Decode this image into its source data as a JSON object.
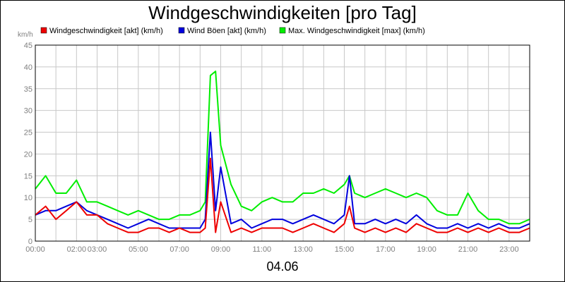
{
  "chart_data": {
    "type": "line",
    "title": "Windgeschwindigkeiten [pro Tag]",
    "unit_label": "km/h",
    "date_label": "04.06",
    "ylim": [
      0,
      45
    ],
    "y_ticks": [
      "0",
      "5",
      "10",
      "15",
      "20",
      "25",
      "30",
      "35",
      "40",
      "45"
    ],
    "xlim": [
      "00:00",
      "24:00"
    ],
    "x_ticks": [
      "00:00",
      "02:00",
      "03:00",
      "05:00",
      "07:00",
      "09:00",
      "11:00",
      "13:00",
      "15:00",
      "17:00",
      "19:00",
      "21:00",
      "23:00"
    ],
    "grid": true,
    "legend_position": "top-left",
    "series": [
      {
        "name": "Windgeschwindigkeit [akt] (km/h)",
        "color": "#ee0000",
        "x": [
          "00:00",
          "00:30",
          "01:00",
          "01:30",
          "02:00",
          "02:30",
          "03:00",
          "03:30",
          "04:00",
          "04:30",
          "05:00",
          "05:30",
          "06:00",
          "06:30",
          "07:00",
          "07:30",
          "08:00",
          "08:15",
          "08:30",
          "08:45",
          "09:00",
          "09:30",
          "10:00",
          "10:30",
          "11:00",
          "11:30",
          "12:00",
          "12:30",
          "13:00",
          "13:30",
          "14:00",
          "14:30",
          "15:00",
          "15:15",
          "15:30",
          "16:00",
          "16:30",
          "17:00",
          "17:30",
          "18:00",
          "18:30",
          "19:00",
          "19:30",
          "20:00",
          "20:30",
          "21:00",
          "21:30",
          "22:00",
          "22:30",
          "23:00",
          "23:30",
          "24:00"
        ],
        "values": [
          6,
          8,
          5,
          7,
          9,
          6,
          6,
          4,
          3,
          2,
          2,
          3,
          3,
          2,
          3,
          2,
          2,
          3,
          19,
          2,
          9,
          2,
          3,
          2,
          3,
          3,
          3,
          2,
          3,
          4,
          3,
          2,
          4,
          8,
          3,
          2,
          3,
          2,
          3,
          2,
          4,
          3,
          2,
          2,
          3,
          2,
          3,
          2,
          3,
          2,
          2,
          3
        ]
      },
      {
        "name": "Wind Böen [akt] (km/h)",
        "color": "#0000dd",
        "x": [
          "00:00",
          "00:30",
          "01:00",
          "01:30",
          "02:00",
          "02:30",
          "03:00",
          "03:30",
          "04:00",
          "04:30",
          "05:00",
          "05:30",
          "06:00",
          "06:30",
          "07:00",
          "07:30",
          "08:00",
          "08:15",
          "08:30",
          "08:45",
          "09:00",
          "09:30",
          "10:00",
          "10:30",
          "11:00",
          "11:30",
          "12:00",
          "12:30",
          "13:00",
          "13:30",
          "14:00",
          "14:30",
          "15:00",
          "15:15",
          "15:30",
          "16:00",
          "16:30",
          "17:00",
          "17:30",
          "18:00",
          "18:30",
          "19:00",
          "19:30",
          "20:00",
          "20:30",
          "21:00",
          "21:30",
          "22:00",
          "22:30",
          "23:00",
          "23:30",
          "24:00"
        ],
        "values": [
          6,
          7,
          7,
          8,
          9,
          7,
          6,
          5,
          4,
          3,
          4,
          5,
          4,
          3,
          3,
          3,
          3,
          5,
          25,
          7,
          17,
          4,
          5,
          3,
          4,
          5,
          5,
          4,
          5,
          6,
          5,
          4,
          6,
          15,
          4,
          4,
          5,
          4,
          5,
          4,
          6,
          4,
          3,
          3,
          4,
          3,
          4,
          3,
          4,
          3,
          3,
          4
        ]
      },
      {
        "name": "Max. Windgeschwindigkeit [max] (km/h)",
        "color": "#00ee00",
        "x": [
          "00:00",
          "00:30",
          "01:00",
          "01:30",
          "02:00",
          "02:30",
          "03:00",
          "03:30",
          "04:00",
          "04:30",
          "05:00",
          "05:30",
          "06:00",
          "06:30",
          "07:00",
          "07:30",
          "08:00",
          "08:15",
          "08:30",
          "08:45",
          "09:00",
          "09:30",
          "10:00",
          "10:30",
          "11:00",
          "11:30",
          "12:00",
          "12:30",
          "13:00",
          "13:30",
          "14:00",
          "14:30",
          "15:00",
          "15:15",
          "15:30",
          "16:00",
          "16:30",
          "17:00",
          "17:30",
          "18:00",
          "18:30",
          "19:00",
          "19:30",
          "20:00",
          "20:30",
          "21:00",
          "21:30",
          "22:00",
          "22:30",
          "23:00",
          "23:30",
          "24:00"
        ],
        "values": [
          12,
          15,
          11,
          11,
          14,
          9,
          9,
          8,
          7,
          6,
          7,
          6,
          5,
          5,
          6,
          6,
          7,
          9,
          38,
          39,
          22,
          13,
          8,
          7,
          9,
          10,
          9,
          9,
          11,
          11,
          12,
          11,
          13,
          15,
          11,
          10,
          11,
          12,
          11,
          10,
          11,
          10,
          7,
          6,
          6,
          11,
          7,
          5,
          5,
          4,
          4,
          5
        ]
      }
    ]
  }
}
